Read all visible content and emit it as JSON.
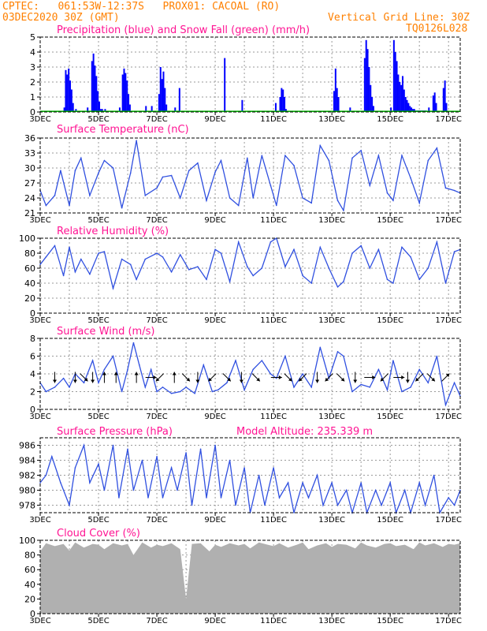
{
  "header": {
    "line1": "CPTEC:   061:53W-12:37S   PROX01: CACOAL (RO)",
    "line2": "03DEC2020 30Z (GMT)",
    "grid_note": "Vertical Grid Line: 30Z",
    "code": "TQ0126L028",
    "model_altitude": "Model Altitude: 235.339  m"
  },
  "colors": {
    "header": "#ff8000",
    "title": "#ff1493",
    "series": "#0000ff",
    "line": "#3050e0",
    "snow": "#00b000",
    "cloud": "#b0b0b0"
  },
  "x_tick_labels": [
    "3DEC",
    "5DEC",
    "7DEC",
    "9DEC",
    "11DEC",
    "13DEC",
    "15DEC",
    "17DEC"
  ],
  "chart_data": [
    {
      "type": "bar",
      "title": "Precipitation (blue) and Snow Fall (green) (mm/h)",
      "ylim": [
        0,
        5
      ],
      "yticks": [
        0,
        1,
        2,
        3,
        4,
        5
      ],
      "x_unit": "days since 3DEC 00Z",
      "series": [
        {
          "name": "Precipitation",
          "x": [
            0.8,
            0.85,
            0.9,
            0.95,
            1.0,
            1.05,
            1.1,
            1.2,
            1.6,
            1.75,
            1.8,
            1.85,
            1.9,
            1.95,
            2.0,
            2.05,
            2.1,
            2.2,
            2.7,
            2.8,
            2.85,
            2.9,
            2.95,
            3.0,
            3.05,
            3.6,
            3.8,
            4.05,
            4.1,
            4.15,
            4.2,
            4.25,
            4.3,
            4.6,
            4.75,
            6.3,
            6.9,
            8.05,
            8.2,
            8.25,
            8.3,
            8.35,
            8.4,
            10.05,
            10.1,
            10.15,
            10.2,
            10.6,
            11.1,
            11.15,
            11.2,
            11.25,
            11.3,
            11.35,
            11.4,
            12.0,
            12.1,
            12.15,
            12.2,
            12.25,
            12.3,
            12.35,
            12.4,
            12.45,
            12.5,
            12.55,
            12.6,
            12.65,
            12.7,
            12.75,
            12.8,
            12.85,
            12.9,
            12.95,
            13.0,
            13.05,
            13.1,
            13.15,
            13.2,
            13.3,
            13.45,
            13.5,
            13.55,
            13.8,
            13.85,
            13.9
          ],
          "values": [
            0.3,
            2.8,
            2.5,
            2.9,
            2.1,
            1.5,
            0.6,
            0.2,
            0.3,
            3.4,
            3.9,
            3.1,
            2.4,
            1.4,
            0.7,
            0.2,
            0.2,
            0.2,
            0.3,
            2.5,
            2.9,
            2.6,
            2.1,
            1.2,
            0.5,
            0.4,
            0.4,
            1.2,
            3.0,
            2.2,
            2.7,
            1.6,
            0.5,
            0.3,
            1.6,
            3.6,
            0.8,
            0.6,
            1.0,
            1.6,
            1.5,
            1.0,
            0.2,
            1.4,
            2.9,
            1.6,
            1.0,
            0.3,
            3.6,
            4.8,
            4.2,
            3.0,
            1.8,
            1.0,
            0.4,
            0.3,
            4.8,
            4.0,
            3.4,
            2.5,
            2.0,
            1.8,
            2.4,
            1.5,
            1.0,
            0.8,
            0.6,
            0.4,
            0.3,
            0.2,
            0.2,
            0.1,
            0.1,
            0.1,
            0.1,
            0.1,
            0.1,
            0.1,
            0.1,
            0.3,
            1.1,
            1.3,
            0.6,
            1.6,
            2.1,
            0.6
          ]
        },
        {
          "name": "Snow Fall",
          "x": [],
          "values": []
        }
      ]
    },
    {
      "type": "line",
      "title": "Surface Temperature (nC)",
      "ylim": [
        21,
        36
      ],
      "yticks": [
        21,
        24,
        27,
        30,
        33,
        36
      ],
      "x": [
        0.0,
        0.2,
        0.5,
        0.7,
        1.0,
        1.2,
        1.4,
        1.7,
        2.0,
        2.2,
        2.5,
        2.8,
        3.1,
        3.3,
        3.6,
        4.0,
        4.2,
        4.5,
        4.8,
        5.1,
        5.4,
        5.7,
        6.0,
        6.2,
        6.5,
        6.8,
        7.1,
        7.3,
        7.6,
        7.9,
        8.1,
        8.4,
        8.7,
        9.0,
        9.3,
        9.6,
        9.9,
        10.2,
        10.4,
        10.7,
        11.0,
        11.3,
        11.6,
        11.9,
        12.1,
        12.4,
        12.7,
        13.0,
        13.3,
        13.6,
        13.9,
        14.2,
        14.4
      ],
      "values": [
        25.5,
        22.5,
        24.5,
        29.5,
        22.5,
        29.5,
        32.0,
        24.5,
        29.0,
        31.5,
        30.0,
        22.0,
        29.0,
        35.5,
        24.5,
        26.0,
        28.2,
        28.5,
        24.0,
        29.5,
        31.0,
        23.5,
        29.2,
        31.5,
        24.0,
        22.5,
        32.0,
        24.0,
        32.5,
        26.5,
        22.5,
        32.5,
        30.5,
        24.0,
        23.0,
        34.5,
        31.5,
        23.5,
        21.5,
        32.0,
        33.5,
        26.5,
        32.5,
        25.0,
        23.5,
        32.5,
        28.0,
        23.0,
        31.5,
        34.0,
        26.0,
        25.5,
        25.0
      ]
    },
    {
      "type": "line",
      "title": "Relative Humidity (%)",
      "ylim": [
        0,
        100
      ],
      "yticks": [
        0,
        20,
        40,
        60,
        80,
        100
      ],
      "x": [
        0.0,
        0.2,
        0.5,
        0.8,
        1.0,
        1.2,
        1.4,
        1.7,
        2.0,
        2.2,
        2.5,
        2.8,
        3.1,
        3.3,
        3.6,
        4.0,
        4.2,
        4.5,
        4.8,
        5.1,
        5.4,
        5.7,
        6.0,
        6.2,
        6.5,
        6.8,
        7.1,
        7.3,
        7.6,
        7.9,
        8.1,
        8.4,
        8.7,
        9.0,
        9.3,
        9.6,
        9.9,
        10.2,
        10.4,
        10.7,
        11.0,
        11.3,
        11.6,
        11.9,
        12.1,
        12.4,
        12.7,
        13.0,
        13.3,
        13.6,
        13.9,
        14.2,
        14.4
      ],
      "values": [
        65,
        75,
        90,
        50,
        88,
        55,
        72,
        52,
        80,
        82,
        33,
        72,
        65,
        45,
        72,
        80,
        75,
        55,
        78,
        58,
        62,
        45,
        85,
        80,
        42,
        95,
        62,
        50,
        60,
        95,
        100,
        62,
        85,
        50,
        40,
        88,
        60,
        35,
        42,
        80,
        90,
        60,
        85,
        45,
        40,
        88,
        75,
        45,
        60,
        95,
        40,
        82,
        85
      ]
    },
    {
      "type": "line",
      "title": "Surface Wind (m/s)",
      "ylim": [
        0,
        8
      ],
      "yticks": [
        0,
        2,
        4,
        6,
        8
      ],
      "x": [
        0.0,
        0.2,
        0.5,
        0.8,
        1.0,
        1.2,
        1.5,
        1.8,
        2.0,
        2.2,
        2.5,
        2.8,
        3.0,
        3.2,
        3.4,
        3.6,
        3.8,
        4.0,
        4.2,
        4.5,
        4.8,
        5.0,
        5.3,
        5.6,
        5.9,
        6.1,
        6.4,
        6.7,
        7.0,
        7.3,
        7.6,
        7.9,
        8.1,
        8.4,
        8.7,
        9.0,
        9.3,
        9.6,
        9.9,
        10.2,
        10.4,
        10.7,
        11.0,
        11.3,
        11.6,
        11.9,
        12.1,
        12.4,
        12.7,
        13.0,
        13.3,
        13.6,
        13.9,
        14.2,
        14.4
      ],
      "values": [
        3.0,
        2.0,
        2.5,
        3.5,
        2.5,
        4.0,
        3.0,
        5.5,
        3.0,
        4.5,
        6.0,
        2.0,
        4.5,
        7.5,
        5.0,
        2.5,
        4.5,
        2.0,
        2.5,
        1.8,
        2.0,
        2.5,
        1.8,
        5.0,
        2.0,
        2.2,
        3.0,
        5.5,
        2.2,
        4.5,
        5.5,
        4.0,
        3.5,
        6.0,
        2.5,
        4.0,
        2.5,
        7.0,
        3.5,
        6.5,
        6.0,
        2.0,
        2.8,
        2.5,
        4.5,
        2.2,
        5.5,
        2.0,
        2.5,
        4.5,
        3.0,
        6.0,
        0.5,
        3.0,
        1.5
      ],
      "arrows": [
        {
          "x": 0.5,
          "dir": "S"
        },
        {
          "x": 1.2,
          "dir": "S"
        },
        {
          "x": 1.5,
          "dir": "SE"
        },
        {
          "x": 1.8,
          "dir": "S"
        },
        {
          "x": 2.2,
          "dir": "N"
        },
        {
          "x": 2.6,
          "dir": "N"
        },
        {
          "x": 3.3,
          "dir": "N"
        },
        {
          "x": 3.8,
          "dir": "E"
        },
        {
          "x": 4.1,
          "dir": "SW"
        },
        {
          "x": 4.6,
          "dir": "N"
        },
        {
          "x": 5.0,
          "dir": "SE"
        },
        {
          "x": 5.4,
          "dir": "S"
        },
        {
          "x": 5.9,
          "dir": "SW"
        },
        {
          "x": 6.4,
          "dir": "SE"
        },
        {
          "x": 6.9,
          "dir": "S"
        },
        {
          "x": 7.4,
          "dir": "SE"
        },
        {
          "x": 8.1,
          "dir": "E"
        },
        {
          "x": 8.5,
          "dir": "SE"
        },
        {
          "x": 9.0,
          "dir": "SW"
        },
        {
          "x": 9.5,
          "dir": "S"
        },
        {
          "x": 9.9,
          "dir": "SW"
        },
        {
          "x": 10.3,
          "dir": "SE"
        },
        {
          "x": 10.8,
          "dir": "S"
        },
        {
          "x": 11.3,
          "dir": "E"
        },
        {
          "x": 11.8,
          "dir": "SW"
        },
        {
          "x": 12.3,
          "dir": "E"
        },
        {
          "x": 12.6,
          "dir": "S"
        },
        {
          "x": 13.0,
          "dir": "SW"
        },
        {
          "x": 13.4,
          "dir": "SE"
        },
        {
          "x": 13.9,
          "dir": "NE"
        }
      ]
    },
    {
      "type": "line",
      "title": "Surface Pressure (hPa)",
      "ylim": [
        977,
        987
      ],
      "yticks": [
        978,
        980,
        982,
        984,
        986
      ],
      "x": [
        0.0,
        0.2,
        0.4,
        0.7,
        1.0,
        1.2,
        1.5,
        1.7,
        2.0,
        2.2,
        2.5,
        2.7,
        3.0,
        3.2,
        3.5,
        3.7,
        4.0,
        4.2,
        4.5,
        4.7,
        5.0,
        5.2,
        5.5,
        5.7,
        6.0,
        6.2,
        6.5,
        6.7,
        7.0,
        7.2,
        7.5,
        7.7,
        8.0,
        8.2,
        8.5,
        8.7,
        9.0,
        9.2,
        9.5,
        9.7,
        10.0,
        10.2,
        10.5,
        10.7,
        11.0,
        11.2,
        11.5,
        11.7,
        12.0,
        12.2,
        12.5,
        12.7,
        13.0,
        13.2,
        13.5,
        13.7,
        14.0,
        14.2,
        14.4
      ],
      "values": [
        981,
        982,
        984.5,
        981,
        978,
        983,
        986,
        981,
        983.5,
        980,
        986,
        979,
        985.5,
        980,
        984,
        979,
        984.5,
        979,
        983,
        980,
        985,
        978,
        985.5,
        979,
        986,
        979,
        984,
        978,
        983,
        977,
        982,
        978,
        983,
        979,
        981,
        977,
        981,
        979,
        982,
        978,
        981,
        978,
        980,
        977,
        981,
        977,
        980,
        978,
        981,
        977,
        980,
        977,
        981,
        978,
        982,
        977,
        979,
        978,
        980
      ]
    },
    {
      "type": "area",
      "title": "Cloud Cover (%)",
      "ylim": [
        0,
        100
      ],
      "yticks": [
        0,
        20,
        40,
        60,
        80,
        100
      ],
      "x": [
        0.0,
        0.2,
        0.5,
        0.8,
        1.0,
        1.2,
        1.5,
        1.8,
        2.0,
        2.2,
        2.5,
        2.8,
        3.0,
        3.2,
        3.5,
        3.8,
        4.0,
        4.2,
        4.5,
        4.8,
        5.0,
        5.2,
        5.5,
        5.8,
        6.0,
        6.2,
        6.5,
        6.8,
        7.0,
        7.2,
        7.5,
        7.8,
        8.0,
        8.2,
        8.5,
        8.8,
        9.0,
        9.2,
        9.5,
        9.8,
        10.0,
        10.2,
        10.5,
        10.8,
        11.0,
        11.2,
        11.5,
        11.8,
        12.0,
        12.2,
        12.5,
        12.8,
        13.0,
        13.2,
        13.5,
        13.8,
        14.0,
        14.2,
        14.4
      ],
      "values": [
        85,
        96,
        92,
        95,
        86,
        97,
        90,
        95,
        94,
        88,
        96,
        93,
        95,
        80,
        97,
        90,
        94,
        92,
        96,
        88,
        20,
        95,
        96,
        85,
        94,
        91,
        96,
        93,
        95,
        89,
        97,
        94,
        92,
        96,
        90,
        94,
        97,
        88,
        93,
        96,
        91,
        95,
        94,
        89,
        97,
        93,
        90,
        95,
        96,
        92,
        94,
        88,
        97,
        93,
        96,
        91,
        95,
        94,
        96
      ]
    }
  ]
}
